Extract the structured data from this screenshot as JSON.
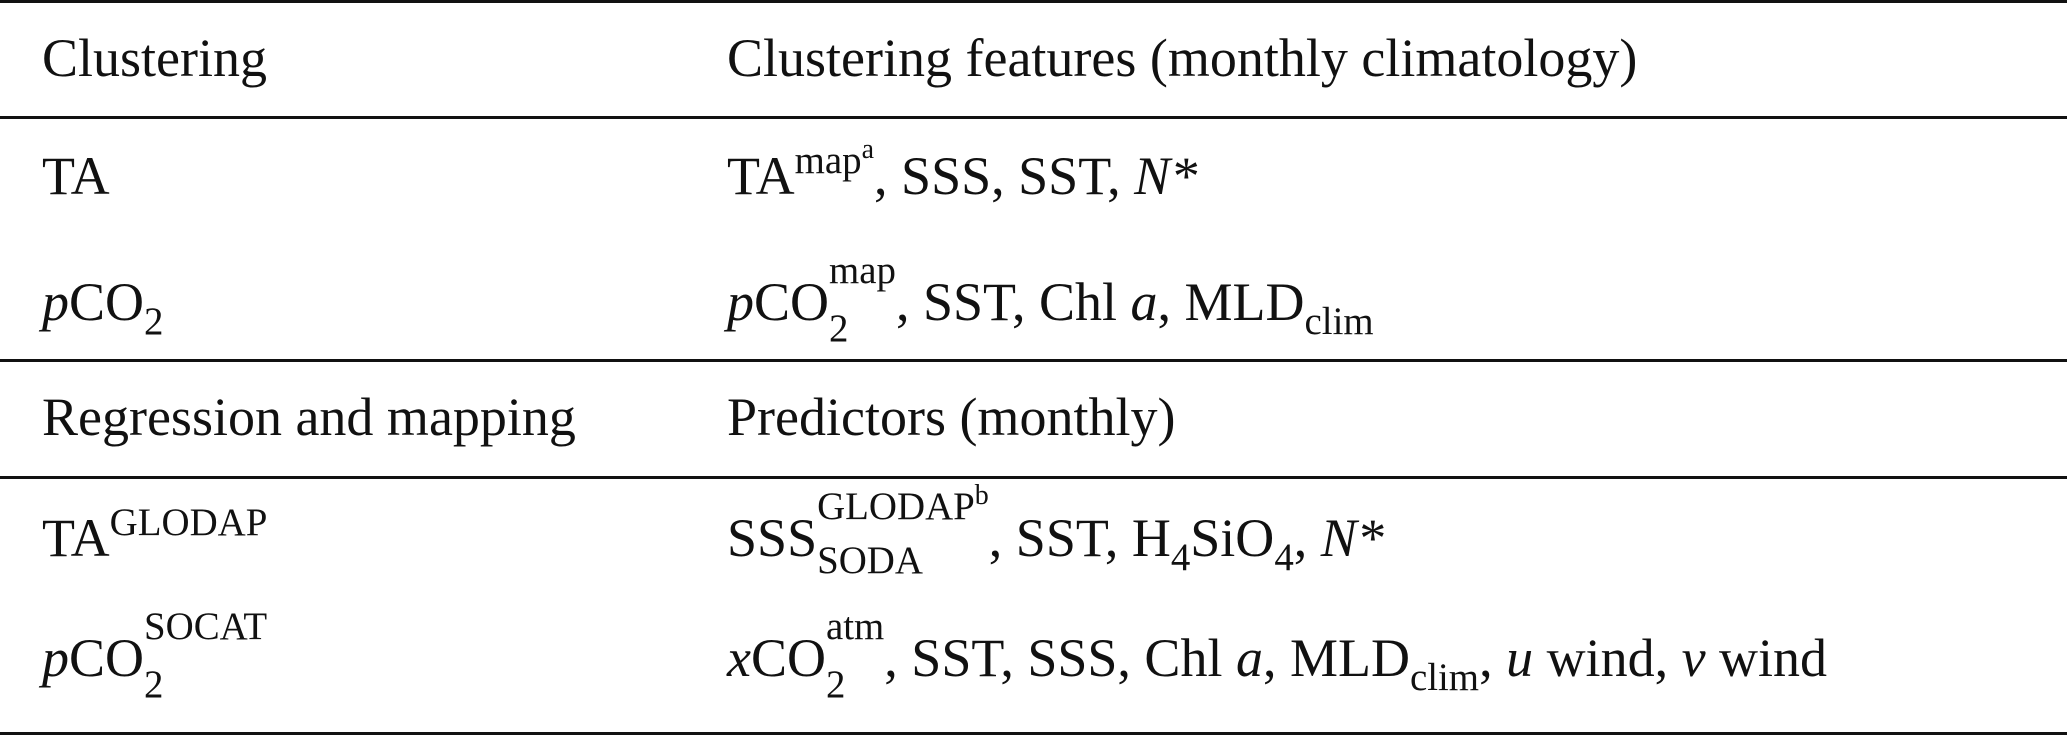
{
  "table": {
    "sections": [
      {
        "header": {
          "col1": "Clustering",
          "col2": "Clustering features (monthly climatology)"
        },
        "rows": [
          {
            "col1": {
              "base": "TA"
            },
            "col2": {
              "term1_base": "TA",
              "term1_sup": "map",
              "term1_note": "a",
              "rest": ", SSS, SST, ",
              "nstar": "N*"
            }
          },
          {
            "col1": {
              "italic": "p",
              "base": "CO",
              "sub": "2"
            },
            "col2": {
              "italic": "p",
              "base": "CO",
              "sup": "map",
              "sub": "2",
              "rest1": ", SST, Chl ",
              "italic_a": "a",
              "rest2": ", MLD",
              "mld_sub": "clim"
            }
          }
        ]
      },
      {
        "header": {
          "col1": "Regression and mapping",
          "col2": "Predictors (monthly)"
        },
        "rows": [
          {
            "col1": {
              "base": "TA",
              "sup": "GLODAP"
            },
            "col2": {
              "base": "SSS",
              "sup": "GLODAP",
              "sup_note": "b",
              "sub": "SODA",
              "rest1": ", SST, H",
              "h_sub": "4",
              "rest2": "SiO",
              "o_sub": "4",
              "rest3": ", ",
              "nstar": "N*"
            }
          },
          {
            "col1": {
              "italic": "p",
              "base": "CO",
              "sup": "SOCAT",
              "sub": "2"
            },
            "col2": {
              "italic": "x",
              "base": "CO",
              "sup": "atm",
              "sub": "2",
              "rest1": ", SST, SSS, Chl ",
              "italic_a": "a",
              "rest2": ", MLD",
              "mld_sub": "clim",
              "rest3": ", ",
              "u": "u",
              "u_rest": " wind, ",
              "v": "v",
              "v_rest": " wind"
            }
          }
        ]
      }
    ]
  }
}
